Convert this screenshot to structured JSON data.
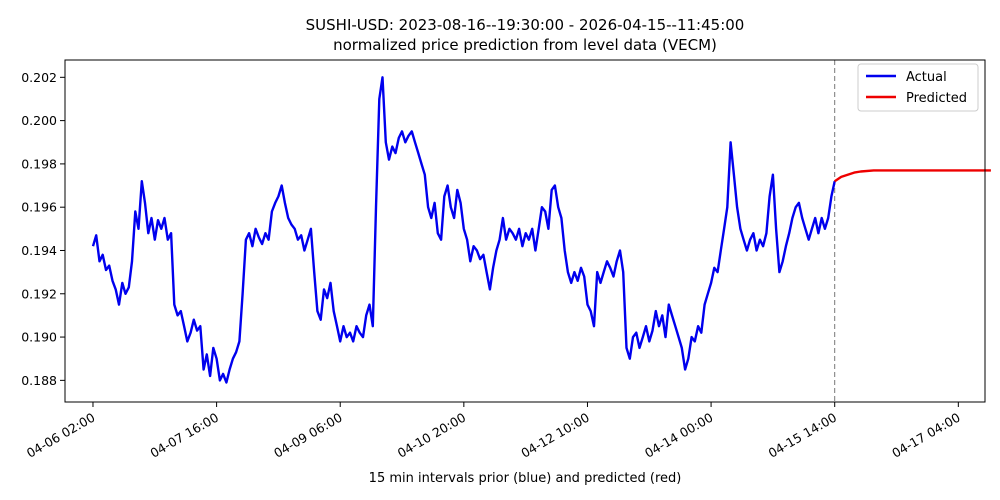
{
  "chart_data": {
    "type": "line",
    "title": "SUSHI-USD: 2023-08-16--19:30:00 - 2026-04-15--11:45:00",
    "subtitle": "normalized price prediction from level data (VECM)",
    "xlabel": "15 min intervals prior (blue) and predicted (red)",
    "ylabel": "",
    "x_tick_labels": [
      "04-06 02:00",
      "04-07 16:00",
      "04-09 06:00",
      "04-10 20:00",
      "04-12 10:00",
      "04-14 00:00",
      "04-15 14:00",
      "04-17 04:00"
    ],
    "y_tick_labels": [
      "0.188",
      "0.190",
      "0.192",
      "0.194",
      "0.196",
      "0.198",
      "0.200",
      "0.202"
    ],
    "ylim": [
      0.187,
      0.2028
    ],
    "xlim_hours": [
      -8.6,
      274.2
    ],
    "grid": false,
    "legend_position": "top-right",
    "split_marker_hours": 228,
    "series": [
      {
        "name": "Actual",
        "color": "#0000ee",
        "points": [
          [
            0,
            0.1942
          ],
          [
            1,
            0.1947
          ],
          [
            2,
            0.1935
          ],
          [
            3,
            0.1938
          ],
          [
            4,
            0.1931
          ],
          [
            5,
            0.1933
          ],
          [
            6,
            0.1926
          ],
          [
            7,
            0.1922
          ],
          [
            8,
            0.1915
          ],
          [
            9,
            0.1925
          ],
          [
            10,
            0.192
          ],
          [
            11,
            0.1923
          ],
          [
            12,
            0.1935
          ],
          [
            13,
            0.1958
          ],
          [
            14,
            0.195
          ],
          [
            15,
            0.1972
          ],
          [
            16,
            0.1962
          ],
          [
            17,
            0.1948
          ],
          [
            18,
            0.1955
          ],
          [
            19,
            0.1945
          ],
          [
            20,
            0.1954
          ],
          [
            21,
            0.195
          ],
          [
            22,
            0.1955
          ],
          [
            23,
            0.1945
          ],
          [
            24,
            0.1948
          ],
          [
            25,
            0.1915
          ],
          [
            26,
            0.191
          ],
          [
            27,
            0.1912
          ],
          [
            28,
            0.1905
          ],
          [
            29,
            0.1898
          ],
          [
            30,
            0.1902
          ],
          [
            31,
            0.1908
          ],
          [
            32,
            0.1903
          ],
          [
            33,
            0.1905
          ],
          [
            34,
            0.1885
          ],
          [
            35,
            0.1892
          ],
          [
            36,
            0.1882
          ],
          [
            37,
            0.1895
          ],
          [
            38,
            0.189
          ],
          [
            39,
            0.188
          ],
          [
            40,
            0.1883
          ],
          [
            41,
            0.1879
          ],
          [
            42,
            0.1885
          ],
          [
            43,
            0.189
          ],
          [
            44,
            0.1893
          ],
          [
            45,
            0.1898
          ],
          [
            46,
            0.192
          ],
          [
            47,
            0.1945
          ],
          [
            48,
            0.1948
          ],
          [
            49,
            0.1942
          ],
          [
            50,
            0.195
          ],
          [
            51,
            0.1946
          ],
          [
            52,
            0.1943
          ],
          [
            53,
            0.1948
          ],
          [
            54,
            0.1945
          ],
          [
            55,
            0.1958
          ],
          [
            56,
            0.1962
          ],
          [
            57,
            0.1965
          ],
          [
            58,
            0.197
          ],
          [
            59,
            0.1962
          ],
          [
            60,
            0.1955
          ],
          [
            61,
            0.1952
          ],
          [
            62,
            0.195
          ],
          [
            63,
            0.1945
          ],
          [
            64,
            0.1947
          ],
          [
            65,
            0.194
          ],
          [
            66,
            0.1945
          ],
          [
            67,
            0.195
          ],
          [
            68,
            0.193
          ],
          [
            69,
            0.1912
          ],
          [
            70,
            0.1908
          ],
          [
            71,
            0.1922
          ],
          [
            72,
            0.1918
          ],
          [
            73,
            0.1925
          ],
          [
            74,
            0.1912
          ],
          [
            75,
            0.1905
          ],
          [
            76,
            0.1898
          ],
          [
            77,
            0.1905
          ],
          [
            78,
            0.19
          ],
          [
            79,
            0.1902
          ],
          [
            80,
            0.1898
          ],
          [
            81,
            0.1905
          ],
          [
            82,
            0.1902
          ],
          [
            83,
            0.19
          ],
          [
            84,
            0.191
          ],
          [
            85,
            0.1915
          ],
          [
            86,
            0.1905
          ],
          [
            87,
            0.196
          ],
          [
            88,
            0.201
          ],
          [
            89,
            0.202
          ],
          [
            90,
            0.199
          ],
          [
            91,
            0.1982
          ],
          [
            92,
            0.1988
          ],
          [
            93,
            0.1985
          ],
          [
            94,
            0.1992
          ],
          [
            95,
            0.1995
          ],
          [
            96,
            0.199
          ],
          [
            97,
            0.1993
          ],
          [
            98,
            0.1995
          ],
          [
            99,
            0.199
          ],
          [
            100,
            0.1985
          ],
          [
            101,
            0.198
          ],
          [
            102,
            0.1975
          ],
          [
            103,
            0.196
          ],
          [
            104,
            0.1955
          ],
          [
            105,
            0.1962
          ],
          [
            106,
            0.1948
          ],
          [
            107,
            0.1945
          ],
          [
            108,
            0.1965
          ],
          [
            109,
            0.197
          ],
          [
            110,
            0.196
          ],
          [
            111,
            0.1955
          ],
          [
            112,
            0.1968
          ],
          [
            113,
            0.1962
          ],
          [
            114,
            0.195
          ],
          [
            115,
            0.1945
          ],
          [
            116,
            0.1935
          ],
          [
            117,
            0.1942
          ],
          [
            118,
            0.194
          ],
          [
            119,
            0.1936
          ],
          [
            120,
            0.1938
          ],
          [
            121,
            0.193
          ],
          [
            122,
            0.1922
          ],
          [
            123,
            0.1932
          ],
          [
            124,
            0.194
          ],
          [
            125,
            0.1945
          ],
          [
            126,
            0.1955
          ],
          [
            127,
            0.1945
          ],
          [
            128,
            0.195
          ],
          [
            129,
            0.1948
          ],
          [
            130,
            0.1945
          ],
          [
            131,
            0.195
          ],
          [
            132,
            0.1942
          ],
          [
            133,
            0.1948
          ],
          [
            134,
            0.1945
          ],
          [
            135,
            0.195
          ],
          [
            136,
            0.194
          ],
          [
            137,
            0.195
          ],
          [
            138,
            0.196
          ],
          [
            139,
            0.1958
          ],
          [
            140,
            0.195
          ],
          [
            141,
            0.1968
          ],
          [
            142,
            0.197
          ],
          [
            143,
            0.196
          ],
          [
            144,
            0.1955
          ],
          [
            145,
            0.194
          ],
          [
            146,
            0.193
          ],
          [
            147,
            0.1925
          ],
          [
            148,
            0.193
          ],
          [
            149,
            0.1926
          ],
          [
            150,
            0.1932
          ],
          [
            151,
            0.1928
          ],
          [
            152,
            0.1915
          ],
          [
            153,
            0.1912
          ],
          [
            154,
            0.1905
          ],
          [
            155,
            0.193
          ],
          [
            156,
            0.1925
          ],
          [
            157,
            0.193
          ],
          [
            158,
            0.1935
          ],
          [
            159,
            0.1932
          ],
          [
            160,
            0.1928
          ],
          [
            161,
            0.1935
          ],
          [
            162,
            0.194
          ],
          [
            163,
            0.193
          ],
          [
            164,
            0.1895
          ],
          [
            165,
            0.189
          ],
          [
            166,
            0.19
          ],
          [
            167,
            0.1902
          ],
          [
            168,
            0.1895
          ],
          [
            169,
            0.19
          ],
          [
            170,
            0.1905
          ],
          [
            171,
            0.1898
          ],
          [
            172,
            0.1903
          ],
          [
            173,
            0.1912
          ],
          [
            174,
            0.1905
          ],
          [
            175,
            0.191
          ],
          [
            176,
            0.19
          ],
          [
            177,
            0.1915
          ],
          [
            178,
            0.191
          ],
          [
            179,
            0.1905
          ],
          [
            180,
            0.19
          ],
          [
            181,
            0.1895
          ],
          [
            182,
            0.1885
          ],
          [
            183,
            0.189
          ],
          [
            184,
            0.19
          ],
          [
            185,
            0.1898
          ],
          [
            186,
            0.1905
          ],
          [
            187,
            0.1902
          ],
          [
            188,
            0.1915
          ],
          [
            189,
            0.192
          ],
          [
            190,
            0.1925
          ],
          [
            191,
            0.1932
          ],
          [
            192,
            0.193
          ],
          [
            193,
            0.194
          ],
          [
            194,
            0.195
          ],
          [
            195,
            0.196
          ],
          [
            196,
            0.199
          ],
          [
            197,
            0.1975
          ],
          [
            198,
            0.196
          ],
          [
            199,
            0.195
          ],
          [
            200,
            0.1945
          ],
          [
            201,
            0.194
          ],
          [
            202,
            0.1945
          ],
          [
            203,
            0.1948
          ],
          [
            204,
            0.194
          ],
          [
            205,
            0.1945
          ],
          [
            206,
            0.1942
          ],
          [
            207,
            0.1948
          ],
          [
            208,
            0.1965
          ],
          [
            209,
            0.1975
          ],
          [
            210,
            0.195
          ],
          [
            211,
            0.193
          ],
          [
            212,
            0.1935
          ],
          [
            213,
            0.1942
          ],
          [
            214,
            0.1948
          ],
          [
            215,
            0.1955
          ],
          [
            216,
            0.196
          ],
          [
            217,
            0.1962
          ],
          [
            218,
            0.1955
          ],
          [
            219,
            0.195
          ],
          [
            220,
            0.1945
          ],
          [
            221,
            0.195
          ],
          [
            222,
            0.1955
          ],
          [
            223,
            0.1948
          ],
          [
            224,
            0.1955
          ],
          [
            225,
            0.195
          ],
          [
            226,
            0.1955
          ],
          [
            227,
            0.1965
          ],
          [
            228,
            0.1972
          ]
        ]
      },
      {
        "name": "Predicted",
        "color": "#ee0000",
        "points": [
          [
            228,
            0.1972
          ],
          [
            230,
            0.1974
          ],
          [
            232,
            0.1975
          ],
          [
            234,
            0.1976
          ],
          [
            236,
            0.19765
          ],
          [
            240,
            0.1977
          ],
          [
            246,
            0.1977
          ],
          [
            256,
            0.1977
          ],
          [
            266,
            0.1977
          ],
          [
            276,
            0.1977
          ]
        ]
      }
    ]
  },
  "legend": {
    "actual": "Actual",
    "predicted": "Predicted"
  }
}
